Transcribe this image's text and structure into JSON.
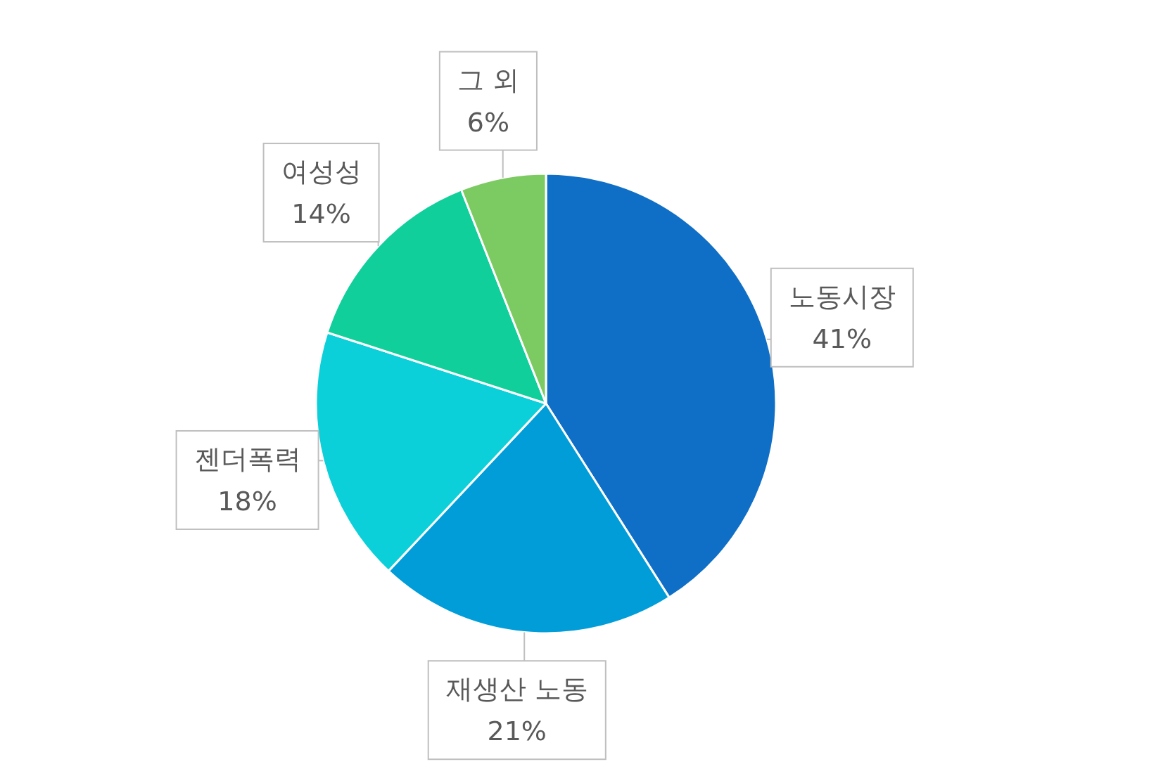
{
  "chart_data": {
    "type": "pie",
    "categories": [
      "노동시장",
      "재생산 노동",
      "젠더폭력",
      "여성성",
      "그 외"
    ],
    "values": [
      41,
      21,
      18,
      14,
      6
    ],
    "colors": [
      "#0f6fc6",
      "#009dd9",
      "#0bd0d9",
      "#10cf9b",
      "#7cca62"
    ],
    "value_labels": [
      "41%",
      "21%",
      "18%",
      "14%",
      "6%"
    ]
  }
}
